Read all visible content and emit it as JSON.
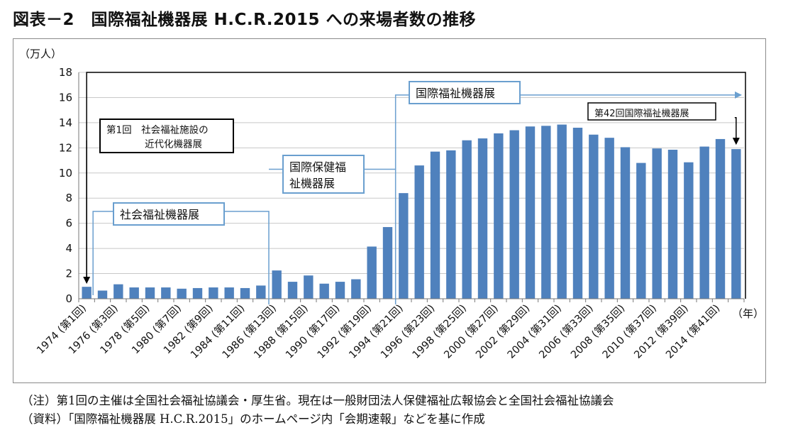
{
  "title": "図表－2　国際福祉機器展 H.C.R.2015 への来場者数の推移",
  "notes": {
    "note1": "（注）第1回の主催は全国社会福祉協議会・厚生省。現在は一般財団法人保健福祉広報協会と全国社会福祉協議会",
    "note2": "（資料）「国際福祉機器展 H.C.R.2015」のホームページ内「会期速報」などを基に作成"
  },
  "chart_data": {
    "type": "bar",
    "ylabel": "（万人）",
    "xlabel": "（年）",
    "ylim": [
      0,
      18
    ],
    "yticks": [
      0,
      2,
      4,
      6,
      8,
      10,
      12,
      14,
      16,
      18
    ],
    "grid": true,
    "bar_color": "#4f81bd",
    "categories": [
      "1974 (第1回)",
      "1975",
      "1976 (第3回)",
      "1977",
      "1978 (第5回)",
      "1979",
      "1980 (第7回)",
      "1981",
      "1982 (第9回)",
      "1983",
      "1984 (第11回)",
      "1985",
      "1986 (第13回)",
      "1987",
      "1988 (第15回)",
      "1989",
      "1990 (第17回)",
      "1991",
      "1992 (第19回)",
      "1993",
      "1994 (第21回)",
      "1995",
      "1996 (第23回)",
      "1997",
      "1998 (第25回)",
      "1999",
      "2000 (第27回)",
      "2001",
      "2002 (第29回)",
      "2003",
      "2004 (第31回)",
      "2005",
      "2006 (第33回)",
      "2007",
      "2008 (第35回)",
      "2009",
      "2010 (第37回)",
      "2011",
      "2012 (第39回)",
      "2013",
      "2014 (第41回)",
      "2015"
    ],
    "tick_labels": [
      "1974 (第1回)",
      "",
      "1976 (第3回)",
      "",
      "1978 (第5回)",
      "",
      "1980 (第7回)",
      "",
      "1982 (第9回)",
      "",
      "1984 (第11回)",
      "",
      "1986 (第13回)",
      "",
      "1988 (第15回)",
      "",
      "1990 (第17回)",
      "",
      "1992 (第19回)",
      "",
      "1994 (第21回)",
      "",
      "1996 (第23回)",
      "",
      "1998 (第25回)",
      "",
      "2000 (第27回)",
      "",
      "2002 (第29回)",
      "",
      "2004 (第31回)",
      "",
      "2006 (第33回)",
      "",
      "2008 (第35回)",
      "",
      "2010 (第37回)",
      "",
      "2012 (第39回)",
      "",
      "2014 (第41回)",
      ""
    ],
    "values": [
      0.95,
      0.65,
      1.15,
      0.9,
      0.9,
      0.9,
      0.8,
      0.85,
      0.9,
      0.9,
      0.85,
      1.05,
      2.25,
      1.35,
      1.85,
      1.2,
      1.35,
      1.55,
      4.15,
      5.7,
      8.4,
      10.6,
      11.7,
      11.8,
      12.6,
      12.75,
      13.15,
      13.4,
      13.7,
      13.75,
      13.85,
      13.6,
      13.05,
      12.8,
      12.05,
      10.8,
      11.95,
      11.85,
      10.85,
      12.1,
      12.7,
      11.9
    ],
    "annotations": [
      {
        "text_lines": [
          "第1回　社会福祉施設の",
          "　　　　近代化機器展"
        ],
        "points_to": "1974 (第1回)"
      },
      {
        "text_lines": [
          "社会福祉機器展"
        ],
        "span": [
          "1974",
          "1986"
        ]
      },
      {
        "text_lines": [
          "国際保健福",
          "祉機器展"
        ],
        "span": [
          "1986",
          "1994"
        ]
      },
      {
        "text_lines": [
          "国際福祉機器展"
        ],
        "span": [
          "1994",
          "→"
        ]
      },
      {
        "text_lines": [
          "第42回国際福祉機器展"
        ],
        "points_to": "2015"
      }
    ]
  }
}
